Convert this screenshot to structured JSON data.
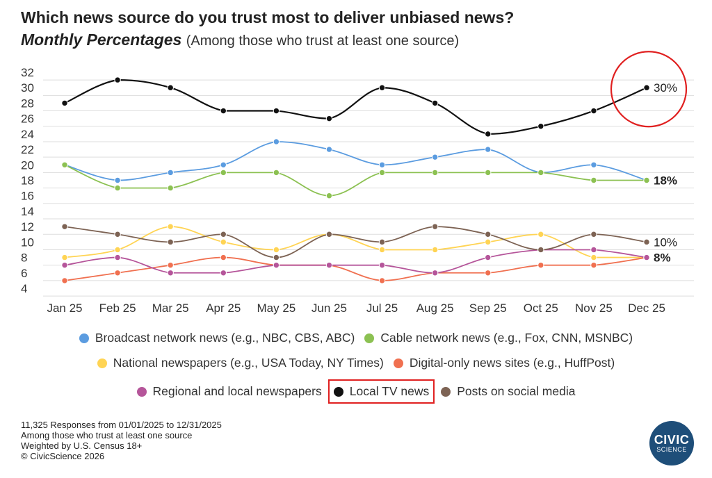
{
  "header": {
    "title": "Which news source do you trust most to deliver unbiased news?",
    "subtitle_emphasis": "Monthly Percentages",
    "subtitle_rest": "(Among those who trust at least one source)"
  },
  "chart_data": {
    "type": "line",
    "categories": [
      "Jan 25",
      "Feb 25",
      "Mar 25",
      "Apr 25",
      "May 25",
      "Jun 25",
      "Jul 25",
      "Aug 25",
      "Sep 25",
      "Oct 25",
      "Nov 25",
      "Dec 25"
    ],
    "ylim": [
      3,
      32
    ],
    "yticks": [
      4,
      6,
      8,
      10,
      12,
      14,
      16,
      18,
      20,
      22,
      24,
      26,
      28,
      30,
      32
    ],
    "grid": true,
    "legend_position": "bottom",
    "series": [
      {
        "name": "Broadcast network news (e.g., NBC, CBS, ABC)",
        "color": "#5b9ce0",
        "values": [
          20,
          18,
          19,
          20,
          23,
          22,
          20,
          21,
          22,
          19,
          20,
          18
        ]
      },
      {
        "name": "Cable network news (e.g., Fox, CNN, MSNBC)",
        "color": "#8cc152",
        "values": [
          20,
          17,
          17,
          19,
          19,
          16,
          19,
          19,
          19,
          19,
          18,
          18
        ]
      },
      {
        "name": "National newspapers (e.g., USA Today, NY Times)",
        "color": "#ffd454",
        "values": [
          8,
          9,
          12,
          10,
          9,
          11,
          9,
          9,
          10,
          11,
          8,
          8
        ]
      },
      {
        "name": "Digital-only news sites (e.g., HuffPost)",
        "color": "#f07050",
        "values": [
          5,
          6,
          7,
          8,
          7,
          7,
          5,
          6,
          6,
          7,
          7,
          8
        ]
      },
      {
        "name": "Regional and local newspapers",
        "color": "#b5559a",
        "values": [
          7,
          8,
          6,
          6,
          7,
          7,
          7,
          6,
          8,
          9,
          9,
          8
        ]
      },
      {
        "name": "Local TV news",
        "color": "#111111",
        "values": [
          28,
          31,
          30,
          27,
          27,
          26,
          30,
          28,
          24,
          25,
          27,
          30
        ]
      },
      {
        "name": "Posts on social media",
        "color": "#7d6354",
        "values": [
          12,
          11,
          10,
          11,
          8,
          11,
          10,
          12,
          11,
          9,
          11,
          10
        ]
      }
    ],
    "end_labels": [
      {
        "series": "Local TV news",
        "text": "30%",
        "bold": false
      },
      {
        "series": "Cable network news (e.g., Fox, CNN, MSNBC)",
        "text": "18%",
        "bold": true
      },
      {
        "series": "Posts on social media",
        "text": "10%",
        "bold": false
      },
      {
        "series": "Regional and local newspapers",
        "text": "8%",
        "bold": true
      }
    ],
    "highlight_circle_series": "Local TV news",
    "highlight_legend_series": "Local TV news"
  },
  "legend_rows": [
    [
      0,
      1
    ],
    [
      2,
      3
    ],
    [
      4,
      5,
      6
    ]
  ],
  "footnotes": [
    "11,325 Responses from 01/01/2025 to 12/31/2025",
    "Among those who trust at least one source",
    "Weighted by U.S. Census 18+",
    "© CivicScience 2026"
  ],
  "logo": {
    "line1": "CIVIC",
    "line2": "SCIENCE"
  }
}
